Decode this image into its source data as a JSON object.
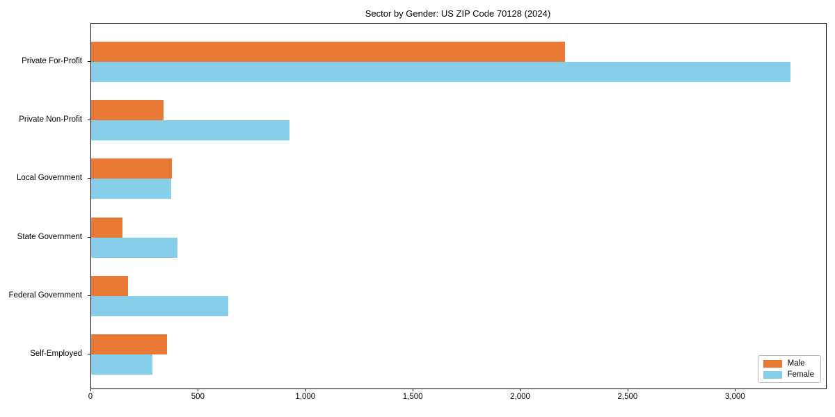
{
  "figure": {
    "title": "Sector by Gender: US ZIP Code 70128 (2024)"
  },
  "chart_data": {
    "type": "bar",
    "orientation": "horizontal",
    "title": "Sector by Gender: US ZIP Code 70128 (2024)",
    "categories": [
      "Private For-Profit",
      "Private Non-Profit",
      "Local Government",
      "State Government",
      "Federal Government",
      "Self-Employed"
    ],
    "series": [
      {
        "name": "Male",
        "color": "#e87a36",
        "values": [
          2205,
          337,
          375,
          146,
          172,
          353
        ]
      },
      {
        "name": "Female",
        "color": "#87ceeb",
        "values": [
          3255,
          922,
          372,
          401,
          637,
          285
        ]
      }
    ],
    "xlabel": "",
    "ylabel": "",
    "xlim": [
      0,
      3420
    ],
    "xticks": [
      0,
      500,
      1000,
      1500,
      2000,
      2500,
      3000
    ],
    "xtick_labels": [
      "0",
      "500",
      "1,000",
      "1,500",
      "2,000",
      "2,500",
      "3,000"
    ],
    "grid": false,
    "legend": {
      "position": "lower right",
      "entries": [
        "Male",
        "Female"
      ]
    }
  }
}
